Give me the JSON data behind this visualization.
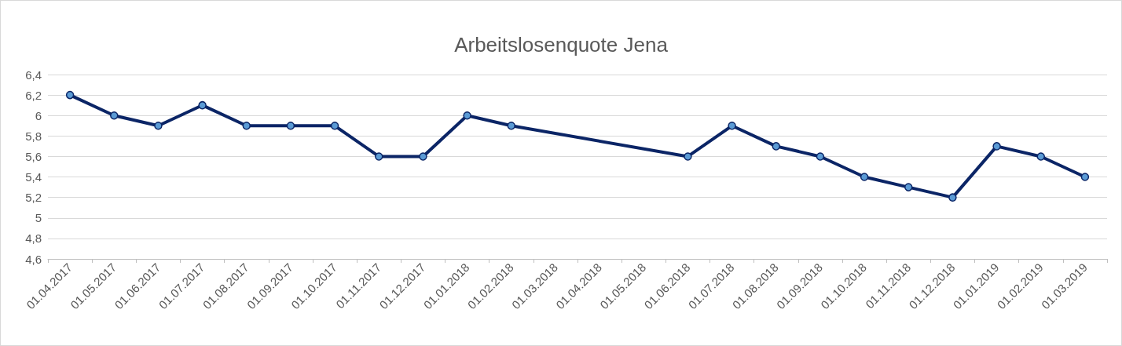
{
  "chart_data": {
    "type": "line",
    "title": "Arbeitslosenquote Jena",
    "categories": [
      "01.04.2017",
      "01.05.2017",
      "01.06.2017",
      "01.07.2017",
      "01.08.2017",
      "01.09.2017",
      "01.10.2017",
      "01.11.2017",
      "01.12.2017",
      "01.01.2018",
      "01.02.2018",
      "01.03.2018",
      "01.04.2018",
      "01.05.2018",
      "01.06.2018",
      "01.07.2018",
      "01.08.2018",
      "01.09.2018",
      "01.10.2018",
      "01.11.2018",
      "01.12.2018",
      "01.01.2019",
      "01.02.2019",
      "01.03.2019"
    ],
    "series": [
      {
        "color": "#0b2566",
        "values": [
          6.2,
          6.0,
          5.9,
          6.1,
          5.9,
          5.9,
          5.9,
          5.6,
          5.6,
          6.0,
          5.9,
          null,
          null,
          null,
          5.6,
          5.9,
          5.7,
          5.6,
          5.4,
          5.3,
          5.2,
          5.7,
          5.6,
          5.4
        ]
      }
    ],
    "ylim": [
      4.6,
      6.4
    ],
    "yticks": [
      {
        "value": 4.6,
        "label": "4,6"
      },
      {
        "value": 4.8,
        "label": "4,8"
      },
      {
        "value": 5,
        "label": "5"
      },
      {
        "value": 5.2,
        "label": "5,2"
      },
      {
        "value": 5.4,
        "label": "5,4"
      },
      {
        "value": 5.6,
        "label": "5,6"
      },
      {
        "value": 5.8,
        "label": "5,8"
      },
      {
        "value": 6,
        "label": "6"
      },
      {
        "value": 6.2,
        "label": "6,2"
      },
      {
        "value": 6.4,
        "label": "6,4"
      }
    ],
    "grid": "y",
    "marker": "circle",
    "line_style": "solid"
  }
}
